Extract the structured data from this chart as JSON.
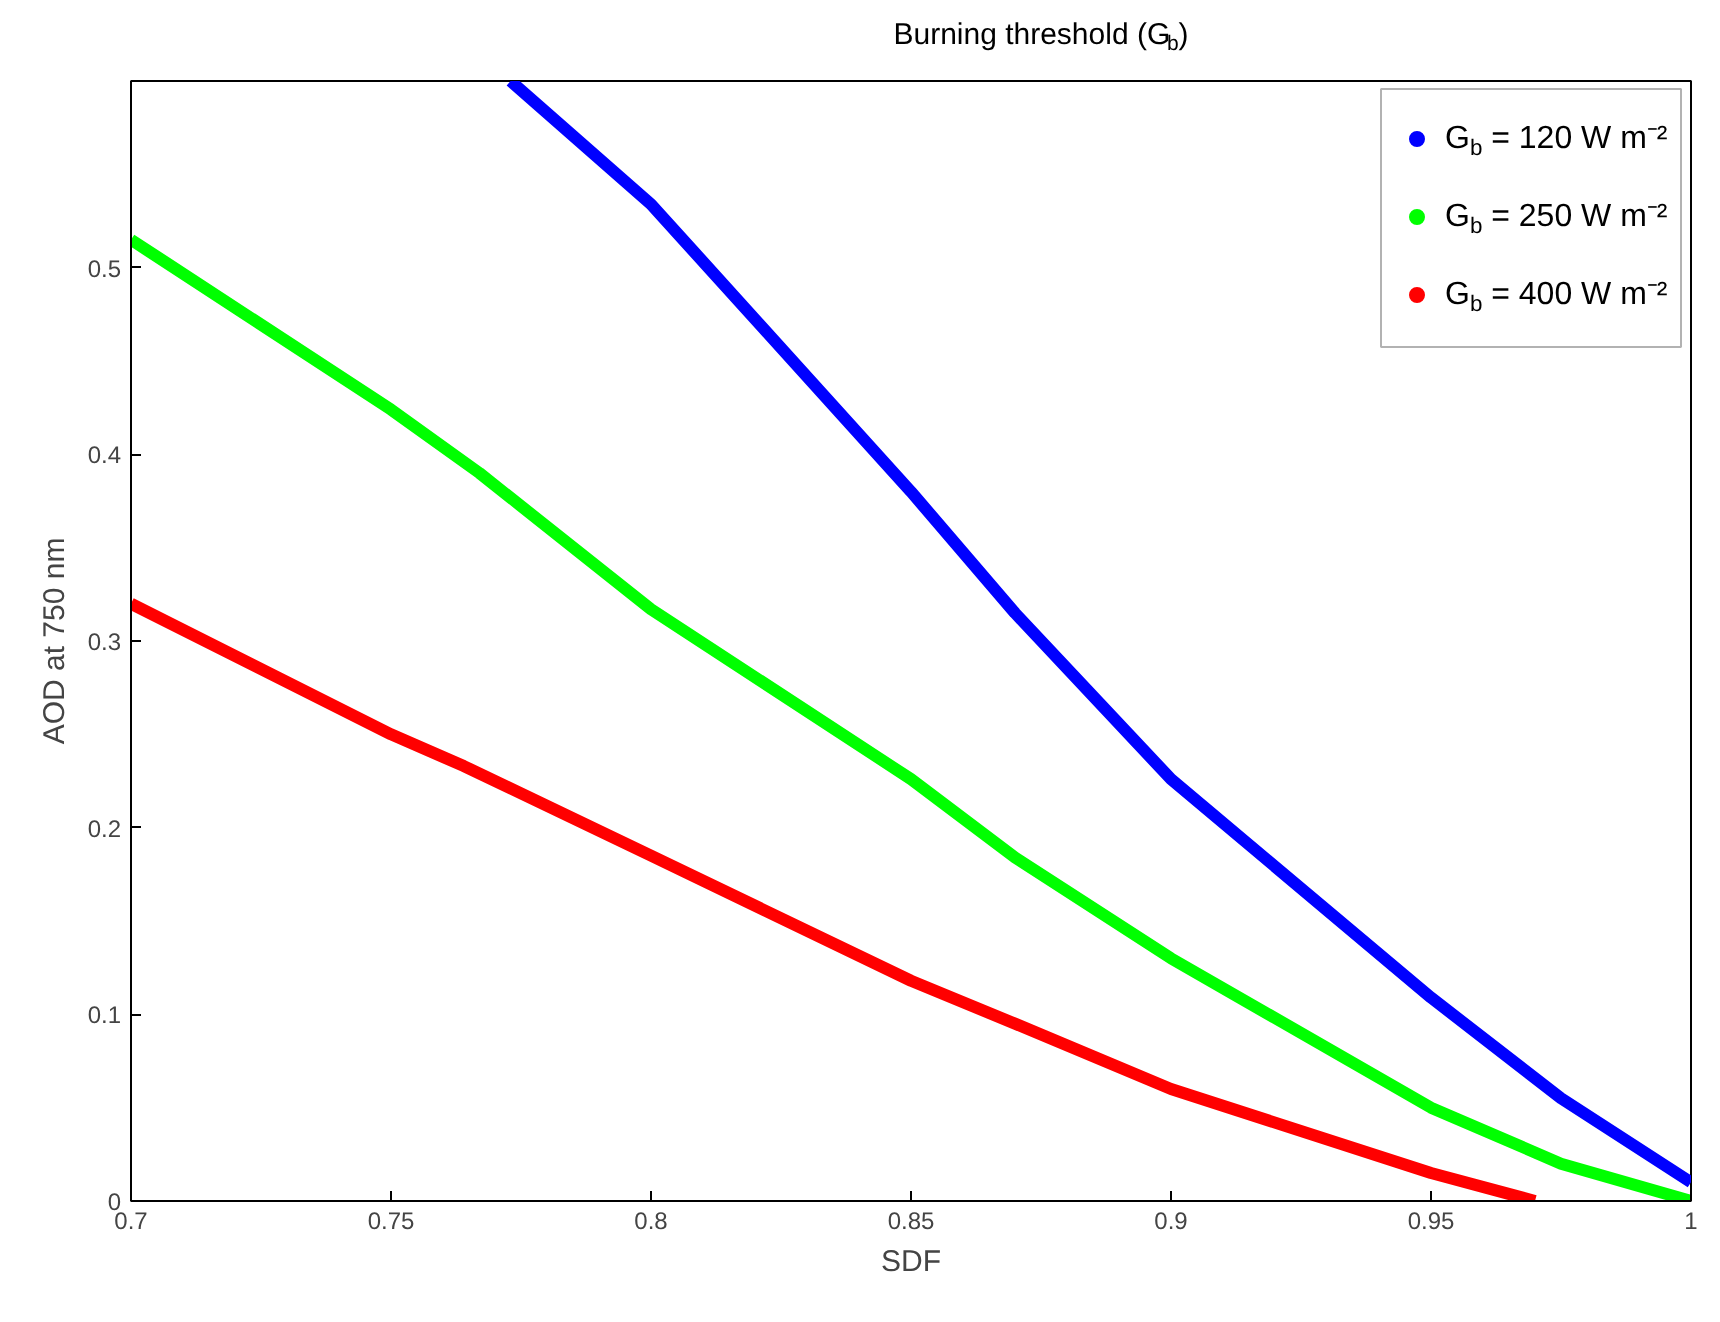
{
  "chart_data": {
    "type": "line",
    "title": "Burning threshold (G$_{b}$)",
    "xlabel": "SDF",
    "ylabel": "AOD at 750 nm",
    "xlim": [
      0.7,
      1
    ],
    "ylim": [
      0,
      0.6
    ],
    "xticks": [
      0.7,
      0.75,
      0.8,
      0.85,
      0.9,
      0.95,
      1
    ],
    "yticks": [
      0,
      0.1,
      0.2,
      0.3,
      0.4,
      0.5
    ],
    "grid": false,
    "legend": "top right",
    "line_style": "solid",
    "series": [
      {
        "name": "G$_{b}$ = 120 W m⁻²",
        "color": "#0000ff",
        "x": [
          0.773,
          0.8,
          0.85,
          0.87,
          0.9,
          0.95,
          0.975,
          1
        ],
        "values": [
          0.6,
          0.534,
          0.38,
          0.315,
          0.226,
          0.109,
          0.055,
          0.01
        ]
      },
      {
        "name": "G$_{b}$ = 250 W m⁻²",
        "color": "#00ff00",
        "x": [
          0.7,
          0.75,
          0.767,
          0.8,
          0.85,
          0.87,
          0.9,
          0.95,
          0.975,
          1
        ],
        "values": [
          0.515,
          0.424,
          0.39,
          0.317,
          0.226,
          0.184,
          0.13,
          0.05,
          0.02,
          0
        ]
      },
      {
        "name": "G$_{b}$ = 400 W m⁻²",
        "color": "#ff0000",
        "x": [
          0.7,
          0.75,
          0.764,
          0.8,
          0.85,
          0.87,
          0.9,
          0.95,
          0.97
        ],
        "values": [
          0.32,
          0.25,
          0.233,
          0.185,
          0.118,
          0.095,
          0.06,
          0.015,
          0
        ]
      }
    ]
  }
}
